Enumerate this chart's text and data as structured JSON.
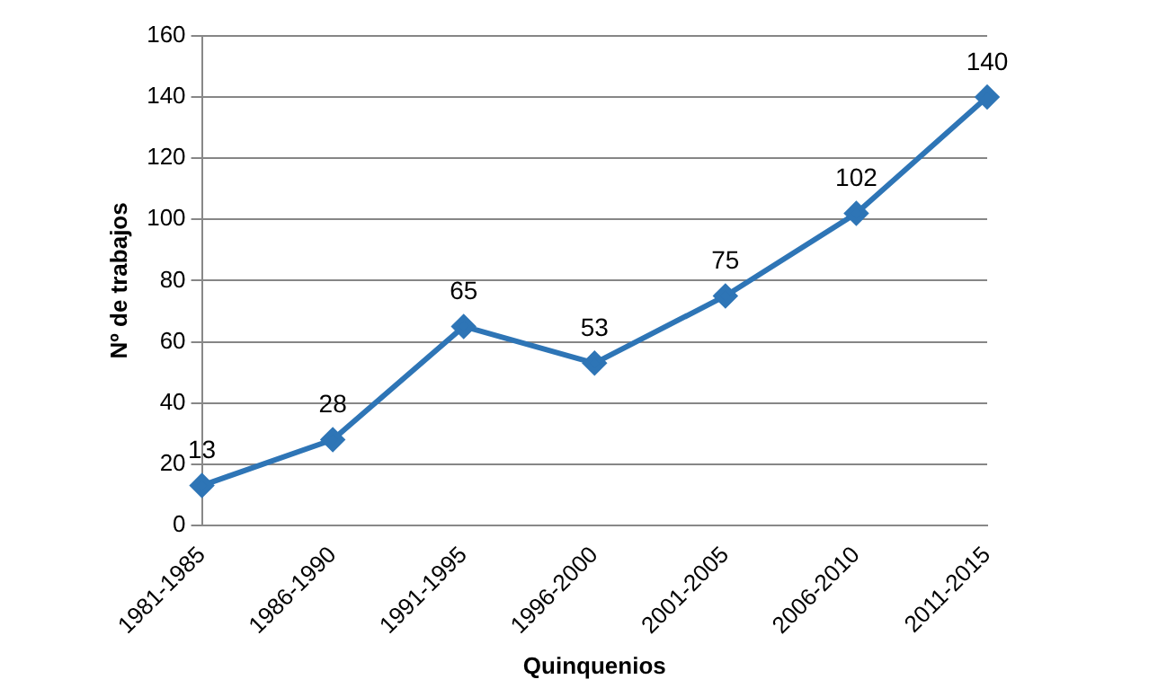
{
  "chart_data": {
    "type": "line",
    "xlabel": "Quinquenios",
    "ylabel": "Nº de trabajos",
    "categories": [
      "1981-1985",
      "1986-1990",
      "1991-1995",
      "1996-2000",
      "2001-2005",
      "2006-2010",
      "2011-2015"
    ],
    "series": [
      {
        "color": "#2e75b6",
        "values": [
          13,
          28,
          65,
          53,
          75,
          102,
          140
        ]
      }
    ],
    "ylim": [
      0,
      160
    ],
    "yticks": [
      0,
      20,
      40,
      60,
      80,
      100,
      120,
      140,
      160
    ],
    "grid": "y",
    "legend": false,
    "marker": "diamond",
    "line_style": "solid",
    "data_labels": true
  }
}
